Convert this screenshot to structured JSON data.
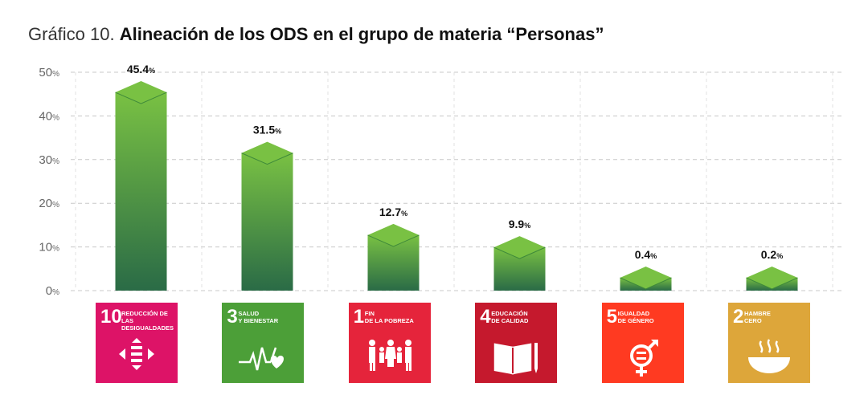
{
  "title": {
    "prefix": "Gráfico 10.",
    "main": "Alineación de los ODS en el grupo de materia “Personas”"
  },
  "chart_data": {
    "type": "bar",
    "title": "Gráfico 10. Alineación de los ODS en el grupo de materia “Personas”",
    "xlabel": "",
    "ylabel": "",
    "ylim": [
      0,
      50
    ],
    "yticks": [
      0,
      10,
      20,
      30,
      40,
      50
    ],
    "ytick_labels": [
      "0",
      "10",
      "20",
      "30",
      "40",
      "50"
    ],
    "unit_suffix": "%",
    "grid": true,
    "categories": [
      "10 Reducción de las desigualdades",
      "3 Salud y bienestar",
      "1 Fin de la pobreza",
      "4 Educación de calidad",
      "5 Igualdad de género",
      "2 Hambre cero"
    ],
    "values": [
      45.4,
      31.5,
      12.7,
      9.9,
      0.4,
      0.2
    ],
    "value_labels": [
      "45.4",
      "31.5",
      "12.7",
      "9.9",
      "0.4",
      "0.2"
    ],
    "bar_color_top": "#79c143",
    "bar_color_bottom": "#2a6b46"
  },
  "sdgs": [
    {
      "number": "10",
      "label": "REDUCCIÓN DE LAS\nDESIGUALDADES",
      "color": "#dd1367",
      "icon": "inequality-arrows-icon"
    },
    {
      "number": "3",
      "label": "SALUD\nY BIENESTAR",
      "color": "#4c9f38",
      "icon": "heartbeat-icon"
    },
    {
      "number": "1",
      "label": "FIN\nDE LA POBREZA",
      "color": "#e5243b",
      "icon": "family-icon"
    },
    {
      "number": "4",
      "label": "EDUCACIÓN\nDE CALIDAD",
      "color": "#c5192d",
      "icon": "book-pencil-icon"
    },
    {
      "number": "5",
      "label": "IGUALDAD\nDE GÉNERO",
      "color": "#ff3a21",
      "icon": "gender-equality-icon"
    },
    {
      "number": "2",
      "label": "HAMBRE\nCERO",
      "color": "#dda63a",
      "icon": "bowl-icon"
    }
  ]
}
